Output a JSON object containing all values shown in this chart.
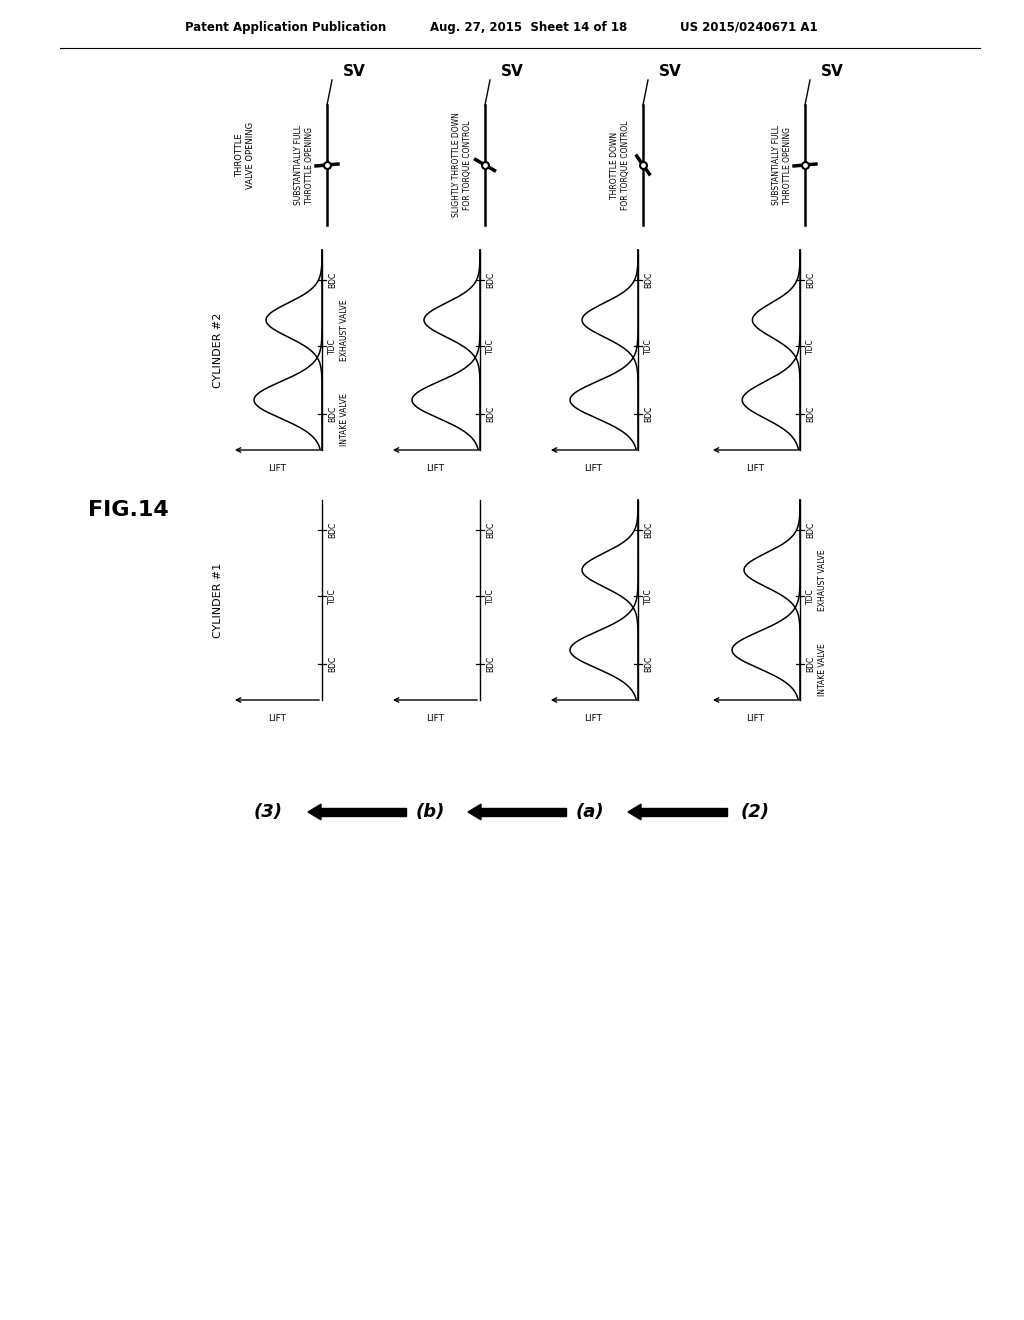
{
  "header_left": "Patent Application Publication",
  "header_center": "Aug. 27, 2015  Sheet 14 of 18",
  "header_right": "US 2015/0240671 A1",
  "fig_label": "FIG.14",
  "column_labels": [
    "(3)",
    "(b)",
    "(a)",
    "(2)"
  ],
  "throttle_descs": [
    "SUBSTANTIALLY FULL\nTHROTTLE OPENING",
    "SLIGHTLY THROTTLE DOWN\nFOR TORQUE CONTROL",
    "THROTTLE DOWN\nFOR TORQUE CONTROL",
    "SUBSTANTIALLY FULL\nTHROTTLE OPENING"
  ],
  "throttle_angles_deg": [
    5,
    -30,
    -55,
    5
  ],
  "cyl2_label": "CYLINDER #2",
  "cyl1_label": "CYLINDER #1",
  "sv_label": "SV",
  "throttle_valve_opening_label": "THROTTLE\nVALVE OPENING",
  "lift_label": "LIFT",
  "bdc_label": "BDC",
  "tdc_label": "TDC",
  "intake_valve_label": "INTAKE VALVE",
  "exhaust_valve_label": "EXHAUST VALVE",
  "bg_color": "#ffffff",
  "fg_color": "#000000"
}
